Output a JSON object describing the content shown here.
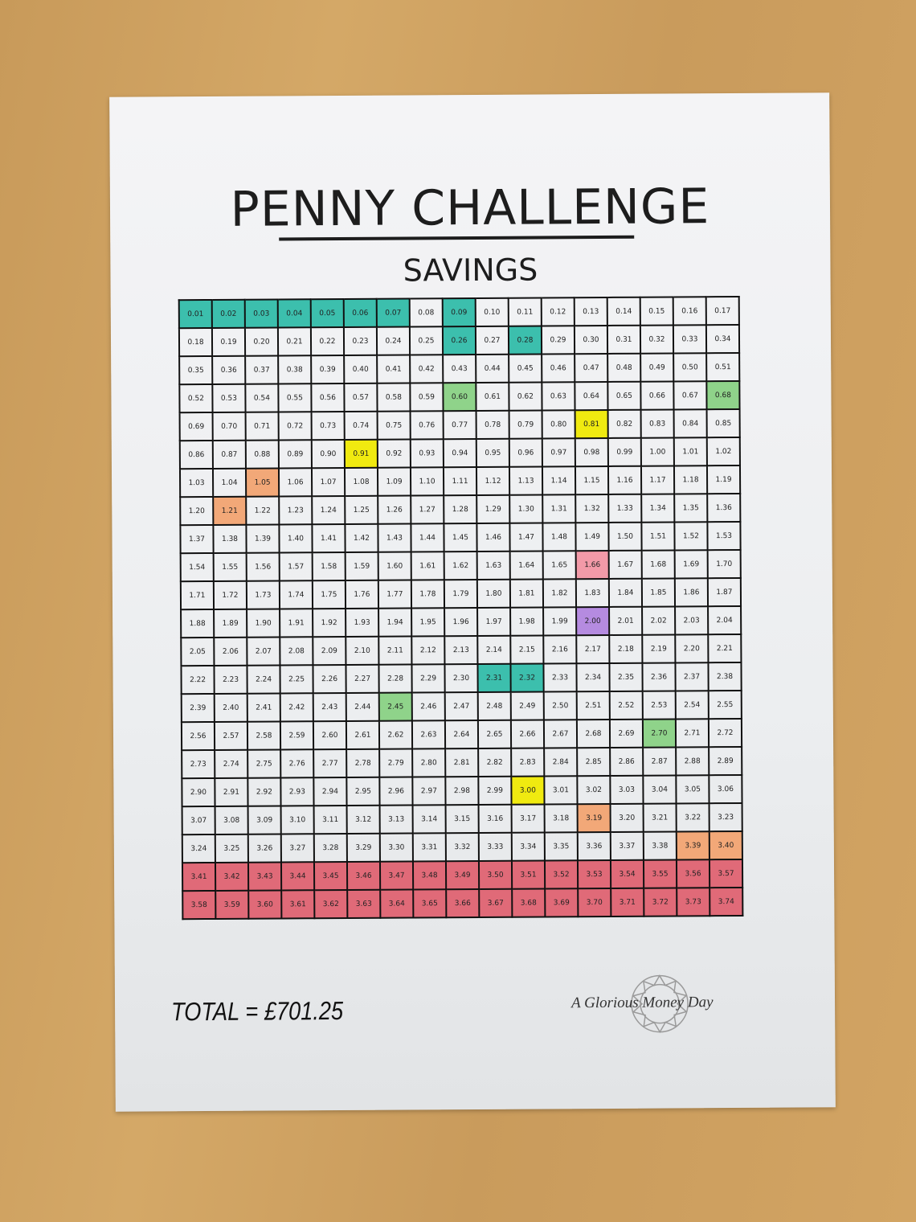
{
  "title": "PENNY CHALLENGE",
  "subtitle": "SAVINGS",
  "total": "TOTAL = £701.25",
  "brand": "A Glorious Money Day",
  "colors": {
    "teal": "#3cbfad",
    "green": "#8fd38a",
    "yellow": "#f0ea10",
    "orange": "#f2a878",
    "pink": "#f29aa8",
    "purple": "#b58be0",
    "red": "#e06a78"
  },
  "grid": [
    [
      "0.01",
      "0.02",
      "0.03",
      "0.04",
      "0.05",
      "0.06",
      "0.07",
      "0.08",
      "0.09",
      "0.10",
      "0.11",
      "0.12",
      "0.13",
      "0.14",
      "0.15",
      "0.16",
      "0.17"
    ],
    [
      "0.18",
      "0.19",
      "0.20",
      "0.21",
      "0.22",
      "0.23",
      "0.24",
      "0.25",
      "0.26",
      "0.27",
      "0.28",
      "0.29",
      "0.30",
      "0.31",
      "0.32",
      "0.33",
      "0.34"
    ],
    [
      "0.35",
      "0.36",
      "0.37",
      "0.38",
      "0.39",
      "0.40",
      "0.41",
      "0.42",
      "0.43",
      "0.44",
      "0.45",
      "0.46",
      "0.47",
      "0.48",
      "0.49",
      "0.50",
      "0.51"
    ],
    [
      "0.52",
      "0.53",
      "0.54",
      "0.55",
      "0.56",
      "0.57",
      "0.58",
      "0.59",
      "0.60",
      "0.61",
      "0.62",
      "0.63",
      "0.64",
      "0.65",
      "0.66",
      "0.67",
      "0.68"
    ],
    [
      "0.69",
      "0.70",
      "0.71",
      "0.72",
      "0.73",
      "0.74",
      "0.75",
      "0.76",
      "0.77",
      "0.78",
      "0.79",
      "0.80",
      "0.81",
      "0.82",
      "0.83",
      "0.84",
      "0.85"
    ],
    [
      "0.86",
      "0.87",
      "0.88",
      "0.89",
      "0.90",
      "0.91",
      "0.92",
      "0.93",
      "0.94",
      "0.95",
      "0.96",
      "0.97",
      "0.98",
      "0.99",
      "1.00",
      "1.01",
      "1.02"
    ],
    [
      "1.03",
      "1.04",
      "1.05",
      "1.06",
      "1.07",
      "1.08",
      "1.09",
      "1.10",
      "1.11",
      "1.12",
      "1.13",
      "1.14",
      "1.15",
      "1.16",
      "1.17",
      "1.18",
      "1.19"
    ],
    [
      "1.20",
      "1.21",
      "1.22",
      "1.23",
      "1.24",
      "1.25",
      "1.26",
      "1.27",
      "1.28",
      "1.29",
      "1.30",
      "1.31",
      "1.32",
      "1.33",
      "1.34",
      "1.35",
      "1.36"
    ],
    [
      "1.37",
      "1.38",
      "1.39",
      "1.40",
      "1.41",
      "1.42",
      "1.43",
      "1.44",
      "1.45",
      "1.46",
      "1.47",
      "1.48",
      "1.49",
      "1.50",
      "1.51",
      "1.52",
      "1.53"
    ],
    [
      "1.54",
      "1.55",
      "1.56",
      "1.57",
      "1.58",
      "1.59",
      "1.60",
      "1.61",
      "1.62",
      "1.63",
      "1.64",
      "1.65",
      "1.66",
      "1.67",
      "1.68",
      "1.69",
      "1.70"
    ],
    [
      "1.71",
      "1.72",
      "1.73",
      "1.74",
      "1.75",
      "1.76",
      "1.77",
      "1.78",
      "1.79",
      "1.80",
      "1.81",
      "1.82",
      "1.83",
      "1.84",
      "1.85",
      "1.86",
      "1.87"
    ],
    [
      "1.88",
      "1.89",
      "1.90",
      "1.91",
      "1.92",
      "1.93",
      "1.94",
      "1.95",
      "1.96",
      "1.97",
      "1.98",
      "1.99",
      "2.00",
      "2.01",
      "2.02",
      "2.03",
      "2.04"
    ],
    [
      "2.05",
      "2.06",
      "2.07",
      "2.08",
      "2.09",
      "2.10",
      "2.11",
      "2.12",
      "2.13",
      "2.14",
      "2.15",
      "2.16",
      "2.17",
      "2.18",
      "2.19",
      "2.20",
      "2.21"
    ],
    [
      "2.22",
      "2.23",
      "2.24",
      "2.25",
      "2.26",
      "2.27",
      "2.28",
      "2.29",
      "2.30",
      "2.31",
      "2.32",
      "2.33",
      "2.34",
      "2.35",
      "2.36",
      "2.37",
      "2.38"
    ],
    [
      "2.39",
      "2.40",
      "2.41",
      "2.42",
      "2.43",
      "2.44",
      "2.45",
      "2.46",
      "2.47",
      "2.48",
      "2.49",
      "2.50",
      "2.51",
      "2.52",
      "2.53",
      "2.54",
      "2.55"
    ],
    [
      "2.56",
      "2.57",
      "2.58",
      "2.59",
      "2.60",
      "2.61",
      "2.62",
      "2.63",
      "2.64",
      "2.65",
      "2.66",
      "2.67",
      "2.68",
      "2.69",
      "2.70",
      "2.71",
      "2.72"
    ],
    [
      "2.73",
      "2.74",
      "2.75",
      "2.76",
      "2.77",
      "2.78",
      "2.79",
      "2.80",
      "2.81",
      "2.82",
      "2.83",
      "2.84",
      "2.85",
      "2.86",
      "2.87",
      "2.88",
      "2.89"
    ],
    [
      "2.90",
      "2.91",
      "2.92",
      "2.93",
      "2.94",
      "2.95",
      "2.96",
      "2.97",
      "2.98",
      "2.99",
      "3.00",
      "3.01",
      "3.02",
      "3.03",
      "3.04",
      "3.05",
      "3.06"
    ],
    [
      "3.07",
      "3.08",
      "3.09",
      "3.10",
      "3.11",
      "3.12",
      "3.13",
      "3.14",
      "3.15",
      "3.16",
      "3.17",
      "3.18",
      "3.19",
      "3.20",
      "3.21",
      "3.22",
      "3.23"
    ],
    [
      "3.24",
      "3.25",
      "3.26",
      "3.27",
      "3.28",
      "3.29",
      "3.30",
      "3.31",
      "3.32",
      "3.33",
      "3.34",
      "3.35",
      "3.36",
      "3.37",
      "3.38",
      "3.39",
      "3.40"
    ],
    [
      "3.41",
      "3.42",
      "3.43",
      "3.44",
      "3.45",
      "3.46",
      "3.47",
      "3.48",
      "3.49",
      "3.50",
      "3.51",
      "3.52",
      "3.53",
      "3.54",
      "3.55",
      "3.56",
      "3.57"
    ],
    [
      "3.58",
      "3.59",
      "3.60",
      "3.61",
      "3.62",
      "3.63",
      "3.64",
      "3.65",
      "3.66",
      "3.67",
      "3.68",
      "3.69",
      "3.70",
      "3.71",
      "3.72",
      "3.73",
      "3.74"
    ]
  ],
  "colored_cells": {
    "teal": [
      "0.01",
      "0.02",
      "0.03",
      "0.04",
      "0.05",
      "0.06",
      "0.07",
      "0.09",
      "0.26",
      "0.28",
      "2.31",
      "2.32"
    ],
    "green": [
      "0.60",
      "0.68",
      "2.45",
      "2.70"
    ],
    "yellow": [
      "0.81",
      "0.91",
      "3.00"
    ],
    "orange": [
      "1.05",
      "1.21",
      "3.19",
      "3.39",
      "3.40"
    ],
    "pink": [
      "1.66"
    ],
    "purple": [
      "2.00"
    ],
    "red_rows": [
      20,
      21
    ]
  }
}
